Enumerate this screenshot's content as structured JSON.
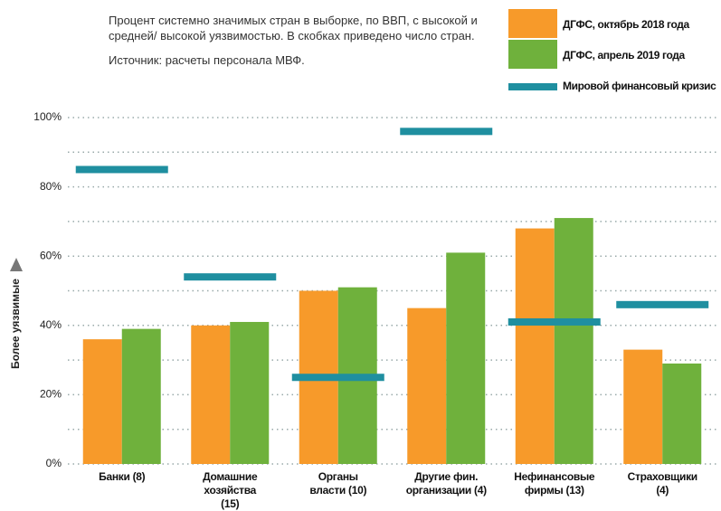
{
  "chart_data": {
    "type": "bar",
    "subtitle": "Процент системно значимых стран в выборке, по ВВП, с высокой и средней/ высокой уязвимостью. В скобках приведено число стран.",
    "source": "Источник: расчеты персонала МВФ.",
    "y_label": "Более уязвимые",
    "categories": [
      "Банки (8)",
      "Домашние хозяйства\n(15)",
      "Органы\nвласти (10)",
      "Другие фин.\nорганизации (4)",
      "Нефинансовые\nфирмы (13)",
      "Страховщики\n(4)"
    ],
    "series": [
      {
        "name": "ДГФС, октябрь 2018 года",
        "color": "#f79a2a",
        "values": [
          36,
          40,
          50,
          45,
          68,
          33
        ]
      },
      {
        "name": "ДГФС, апрель 2019 года",
        "color": "#6fb13c",
        "values": [
          39,
          41,
          51,
          61,
          71,
          29
        ]
      },
      {
        "name": "Мировой финансовый кризис",
        "color": "#1f8fa0",
        "marker": "dash",
        "values": [
          85,
          54,
          25,
          96,
          41,
          46
        ]
      }
    ],
    "ylim": [
      0,
      100
    ],
    "yticks": [
      {
        "value": 0,
        "label": "0%"
      },
      {
        "value": 20,
        "label": "20%"
      },
      {
        "value": 40,
        "label": "40%"
      },
      {
        "value": 60,
        "label": "60%"
      },
      {
        "value": 80,
        "label": "80%"
      },
      {
        "value": 100,
        "label": "100%"
      }
    ],
    "minor_yticks": [
      10,
      30,
      50,
      70,
      90
    ],
    "grid": true
  }
}
